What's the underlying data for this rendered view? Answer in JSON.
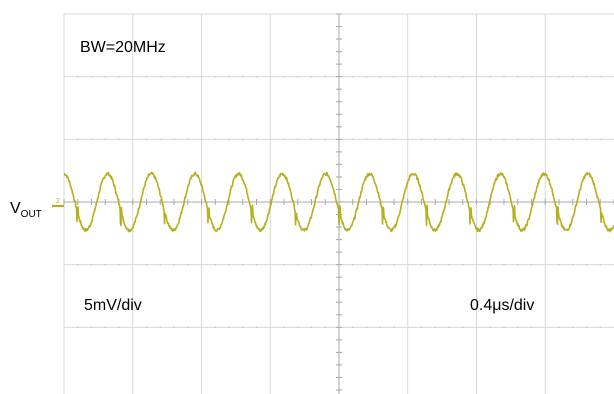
{
  "chart_data": {
    "type": "line",
    "title": "",
    "xlabel": "",
    "ylabel": "",
    "grid": true,
    "grid_divisions": {
      "horizontal": 8,
      "vertical": 6
    },
    "xlim": [
      0,
      8
    ],
    "ylim": [
      -3,
      3
    ],
    "annotations": {
      "bandwidth": "BW=20MHz",
      "vertical_scale": "5mV/div",
      "time_scale": "0.4μs/div"
    },
    "channel_label": {
      "main": "V",
      "sub": "OUT"
    },
    "series": [
      {
        "trace": "output voltage ripple",
        "color": "#b5b01e",
        "offset_div": 0,
        "amplitude_div": 0.45,
        "cycles": 12.6,
        "phase_deg": 90,
        "spikes_per_cycle": 1,
        "spike_amplitude_div": 0.2
      }
    ]
  },
  "colors": {
    "background": "#ffffff",
    "grid": "#d9d9d9",
    "grid_dots": "#bdbdbd",
    "center_axis": "#a8a8a8",
    "trace": "#b5b01e"
  }
}
